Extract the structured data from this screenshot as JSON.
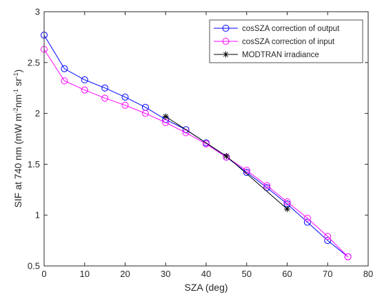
{
  "chart_data": {
    "type": "line",
    "title": "",
    "xlabel": "SZA (deg)",
    "ylabel": "SIF at 740 nm (mW m-2nm-1 sr-1)",
    "xlim": [
      0,
      80
    ],
    "ylim": [
      0.5,
      3
    ],
    "xticks": [
      0,
      10,
      20,
      30,
      40,
      50,
      60,
      70,
      80
    ],
    "yticks": [
      0.5,
      1,
      1.5,
      2,
      2.5,
      3
    ],
    "xtick_labels": [
      "0",
      "10",
      "20",
      "30",
      "40",
      "50",
      "60",
      "70",
      "80"
    ],
    "ytick_labels": [
      "0.5",
      "1",
      "1.5",
      "2",
      "2.5",
      "3"
    ],
    "grid": false,
    "legend_position": "top-right",
    "series": [
      {
        "name": "cosSZA correction of output",
        "color": "#0000ff",
        "marker": "circle",
        "x": [
          0,
          5,
          10,
          15,
          20,
          25,
          30,
          35,
          40,
          45,
          50,
          55,
          60,
          65,
          70,
          75
        ],
        "y": [
          2.77,
          2.44,
          2.33,
          2.25,
          2.16,
          2.06,
          1.94,
          1.84,
          1.71,
          1.57,
          1.42,
          1.27,
          1.11,
          0.93,
          0.75,
          0.59
        ]
      },
      {
        "name": "cosSZA correction of input",
        "color": "#ff00ff",
        "marker": "circle",
        "x": [
          0,
          5,
          10,
          15,
          20,
          25,
          30,
          35,
          40,
          45,
          50,
          55,
          60,
          65,
          70,
          75
        ],
        "y": [
          2.63,
          2.32,
          2.23,
          2.15,
          2.08,
          2.0,
          1.91,
          1.81,
          1.7,
          1.57,
          1.44,
          1.29,
          1.13,
          0.97,
          0.79,
          0.59
        ]
      },
      {
        "name": "MODTRAN irradiance",
        "color": "#000000",
        "marker": "asterisk",
        "x": [
          30,
          45,
          60
        ],
        "y": [
          1.97,
          1.58,
          1.06
        ]
      }
    ]
  }
}
